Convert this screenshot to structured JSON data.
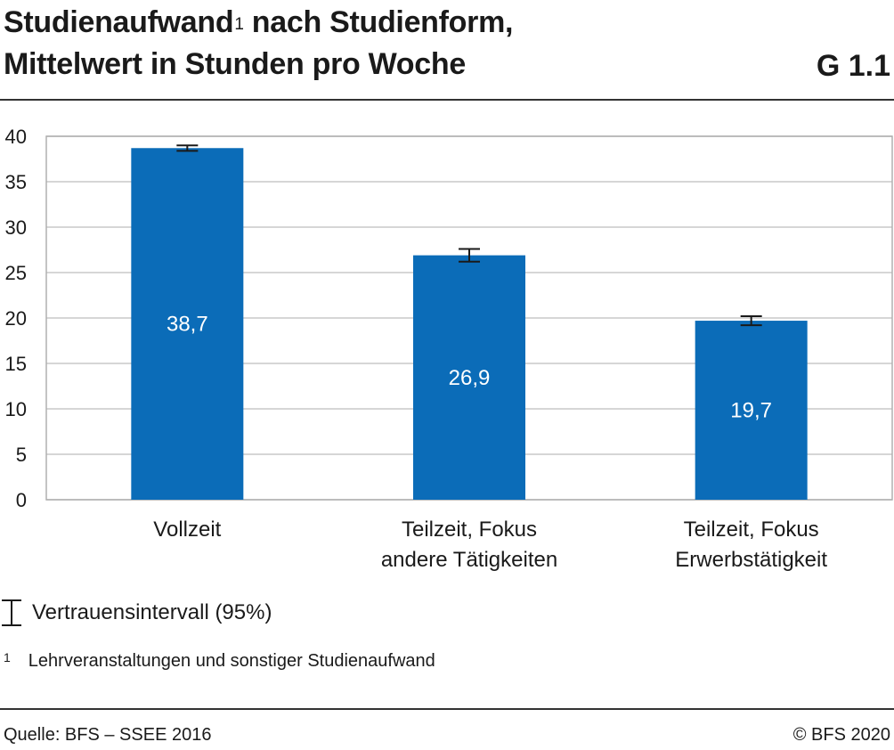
{
  "header": {
    "title_part1": "Studienaufwand",
    "title_sup": "1",
    "title_part2": " nach Studienform,",
    "title_line2": "Mittelwert in Stunden pro Woche",
    "code": "G 1.1"
  },
  "legend": {
    "ci_label": "Vertrauensintervall (95%)"
  },
  "footnote": {
    "number": "1",
    "text": "Lehrveranstaltungen und sonstiger Studienaufwand"
  },
  "footer": {
    "source": "Quelle: BFS – SSEE 2016",
    "copyright": "© BFS 2020"
  },
  "colors": {
    "bar": "#0b6cb8",
    "grid": "#c8c8c8",
    "plot_border": "#b0b0b0"
  },
  "chart_data": {
    "type": "bar",
    "title": "Studienaufwand nach Studienform, Mittelwert in Stunden pro Woche",
    "categories": [
      [
        "Vollzeit"
      ],
      [
        "Teilzeit, Fokus",
        "andere Tätigkeiten"
      ],
      [
        "Teilzeit, Fokus",
        "Erwerbstätigkeit"
      ]
    ],
    "values": [
      38.7,
      26.9,
      19.7
    ],
    "value_labels": [
      "38,7",
      "26,9",
      "19,7"
    ],
    "ci_low": [
      38.4,
      26.2,
      19.2
    ],
    "ci_high": [
      39.0,
      27.6,
      20.2
    ],
    "ylim": [
      0,
      40
    ],
    "yticks": [
      0,
      5,
      10,
      15,
      20,
      25,
      30,
      35,
      40
    ],
    "xlabel": "",
    "ylabel": "",
    "grid": true
  }
}
